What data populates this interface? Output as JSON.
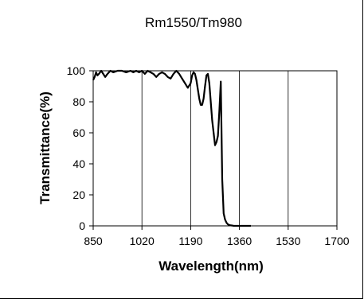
{
  "chart_data": {
    "type": "line",
    "title": "Rm1550/Tm980",
    "xlabel": "Wavelength(nm)",
    "ylabel": "Transmittance(%)",
    "xlim": [
      850,
      1700
    ],
    "ylim": [
      0,
      100
    ],
    "x_ticks": [
      850,
      1020,
      1190,
      1360,
      1530,
      1700
    ],
    "x_tick_labels": [
      "850",
      "1020",
      "1190",
      "1360",
      "1530",
      "1700"
    ],
    "y_ticks": [
      0,
      20,
      40,
      60,
      80,
      100
    ],
    "y_tick_labels": [
      "0",
      "20",
      "40",
      "60",
      "80",
      "100"
    ],
    "grid": "vertical major gridlines",
    "legend": "none",
    "line_color": "#000000",
    "series": [
      {
        "x": [
          850,
          855,
          860,
          865,
          870,
          878,
          885,
          892,
          900,
          910,
          920,
          935,
          950,
          965,
          980,
          990,
          1000,
          1010,
          1020,
          1030,
          1040,
          1050,
          1060,
          1070,
          1080,
          1090,
          1100,
          1110,
          1120,
          1130,
          1140,
          1150,
          1160,
          1170,
          1180,
          1190,
          1195,
          1200,
          1205,
          1210,
          1215,
          1220,
          1225,
          1230,
          1235,
          1240,
          1245,
          1250,
          1255,
          1260,
          1265,
          1270,
          1275,
          1280,
          1285,
          1290,
          1295,
          1300,
          1305,
          1310,
          1315,
          1320,
          1325,
          1330,
          1335,
          1340,
          1345,
          1350,
          1355,
          1360,
          1365,
          1370,
          1380,
          1390,
          1400
        ],
        "y": [
          94,
          96,
          99,
          97,
          98,
          100,
          98,
          96,
          98,
          100,
          99,
          100,
          100,
          99,
          100,
          99,
          100,
          99,
          100,
          98,
          100,
          99,
          98,
          96,
          98,
          99,
          98,
          96,
          95,
          98,
          100,
          98,
          95,
          92,
          89,
          92,
          97,
          99,
          98,
          94,
          88,
          82,
          78,
          78,
          82,
          90,
          97,
          98,
          92,
          80,
          68,
          60,
          52,
          54,
          58,
          74,
          93,
          30,
          8,
          4,
          2,
          1,
          0.5,
          0.3,
          0.2,
          0,
          0,
          0,
          0,
          0,
          0,
          0,
          0,
          0,
          0
        ]
      }
    ]
  }
}
